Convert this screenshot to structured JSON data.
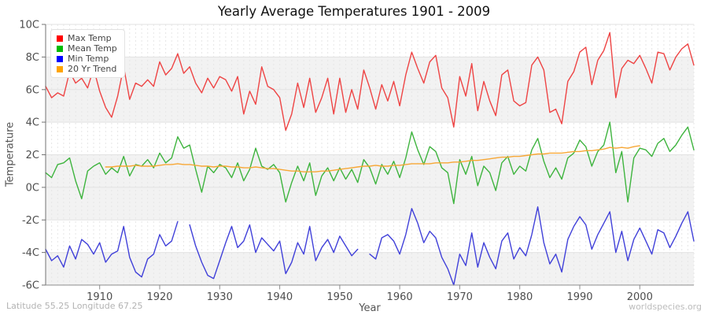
{
  "footer": {
    "left": "Latitude 55.25 Longitude 67.25",
    "right": "worldspecies.org"
  },
  "chart_data": {
    "type": "line",
    "title": "Yearly Average Temperatures 1901 - 2009",
    "xlabel": "Year",
    "ylabel": "Temperature",
    "x_start": 1901,
    "x_end": 2009,
    "ylim": [
      -6,
      10
    ],
    "legend_position": "top-left",
    "y_ticks": [
      {
        "value": 10,
        "label": "10C"
      },
      {
        "value": 8,
        "label": "8C"
      },
      {
        "value": 6,
        "label": "6C"
      },
      {
        "value": 4,
        "label": "4C"
      },
      {
        "value": 2,
        "label": "2C"
      },
      {
        "value": 0,
        "label": "0C"
      },
      {
        "value": -2,
        "label": "-2C"
      },
      {
        "value": -4,
        "label": "-4C"
      },
      {
        "value": -6,
        "label": "-6C"
      }
    ],
    "x_ticks": [
      {
        "value": 1910,
        "label": "1910"
      },
      {
        "value": 1920,
        "label": "1920"
      },
      {
        "value": 1930,
        "label": "1930"
      },
      {
        "value": 1940,
        "label": "1940"
      },
      {
        "value": 1950,
        "label": "1950"
      },
      {
        "value": 1960,
        "label": "1960"
      },
      {
        "value": 1970,
        "label": "1970"
      },
      {
        "value": 1980,
        "label": "1980"
      },
      {
        "value": 1990,
        "label": "1990"
      },
      {
        "value": 2000,
        "label": "2000"
      }
    ],
    "plot": {
      "band_color": "#f2f2f2",
      "gray_bands": [
        [
          8,
          4
        ],
        [
          2,
          -2
        ],
        [
          -4,
          -6
        ]
      ],
      "vgrid": "dashed, one per year",
      "vgrid_color": "#e6e6e6",
      "hgrid": "solid, every 2C",
      "hgrid_color": "#e2e2e2",
      "spine_color": "#808080"
    },
    "series": [
      {
        "name": "Max Temp",
        "color": "#ee4444",
        "swatch": "#ff0000",
        "values": [
          6.2,
          5.5,
          5.8,
          5.6,
          7.1,
          6.4,
          6.7,
          6.1,
          7.3,
          5.9,
          4.9,
          4.3,
          5.6,
          7.4,
          5.4,
          6.4,
          6.2,
          6.6,
          6.2,
          7.7,
          6.9,
          7.3,
          8.2,
          7.0,
          7.4,
          6.4,
          5.8,
          6.7,
          6.1,
          6.8,
          6.6,
          5.9,
          6.8,
          4.5,
          5.9,
          5.1,
          7.4,
          6.2,
          6.0,
          5.5,
          3.5,
          4.5,
          6.4,
          4.9,
          6.7,
          4.6,
          5.5,
          6.7,
          4.5,
          6.7,
          4.6,
          6.0,
          4.8,
          7.2,
          6.1,
          4.8,
          6.3,
          5.3,
          6.5,
          5.0,
          6.9,
          8.3,
          7.3,
          6.4,
          7.7,
          8.1,
          6.1,
          5.5,
          3.7,
          6.8,
          5.6,
          7.6,
          4.7,
          6.5,
          5.3,
          4.4,
          6.9,
          7.2,
          5.3,
          5.0,
          5.2,
          7.5,
          8.0,
          7.2,
          4.6,
          4.8,
          3.9,
          6.5,
          7.1,
          8.3,
          8.6,
          6.3,
          7.8,
          8.4,
          9.5,
          5.5,
          7.3,
          7.8,
          7.6,
          8.1,
          7.3,
          6.4,
          8.3,
          8.2,
          7.2,
          8.0,
          8.5,
          8.8,
          7.5
        ]
      },
      {
        "name": "Mean Temp",
        "color": "#3eb43e",
        "swatch": "#00bb00",
        "values": [
          0.9,
          0.6,
          1.4,
          1.5,
          1.8,
          0.4,
          -0.7,
          1.0,
          1.3,
          1.5,
          0.8,
          1.2,
          0.9,
          1.9,
          0.7,
          1.4,
          1.3,
          1.7,
          1.2,
          2.1,
          1.5,
          1.8,
          3.1,
          2.4,
          2.6,
          1.1,
          -0.3,
          1.3,
          0.9,
          1.4,
          1.2,
          0.6,
          1.5,
          0.4,
          1.1,
          2.4,
          1.3,
          1.1,
          1.4,
          0.9,
          -0.9,
          0.3,
          1.3,
          0.4,
          1.5,
          -0.5,
          0.7,
          1.2,
          0.4,
          1.2,
          0.5,
          1.1,
          0.3,
          1.7,
          1.2,
          0.2,
          1.4,
          0.8,
          1.6,
          0.6,
          1.8,
          3.4,
          2.3,
          1.4,
          2.5,
          2.2,
          1.2,
          0.9,
          -1.0,
          1.7,
          0.8,
          1.9,
          0.1,
          1.3,
          0.9,
          -0.2,
          1.5,
          1.9,
          0.8,
          1.3,
          1.0,
          2.3,
          3.0,
          1.6,
          0.6,
          1.2,
          0.5,
          1.8,
          2.1,
          2.9,
          2.5,
          1.3,
          2.2,
          2.6,
          4.0,
          0.9,
          2.2,
          -0.9,
          1.8,
          2.4,
          2.3,
          1.9,
          2.7,
          3.0,
          2.2,
          2.6,
          3.2,
          3.7,
          2.3
        ]
      },
      {
        "name": "Min Temp",
        "color": "#4040d9",
        "swatch": "#0000ff",
        "values": [
          -3.8,
          -4.5,
          -4.2,
          -4.9,
          -3.6,
          -4.4,
          -3.2,
          -3.5,
          -4.1,
          -3.4,
          -4.6,
          -4.1,
          -3.9,
          -2.4,
          -4.3,
          -5.2,
          -5.5,
          -4.4,
          -4.1,
          -2.9,
          -3.6,
          -3.3,
          -2.1,
          null,
          -2.3,
          -3.6,
          -4.6,
          -5.4,
          -5.6,
          -4.5,
          -3.4,
          -2.4,
          -3.7,
          -3.3,
          -2.3,
          -4.0,
          -3.1,
          -3.5,
          -3.9,
          -3.3,
          -5.3,
          -4.6,
          -3.4,
          -4.1,
          -2.4,
          -4.5,
          -3.7,
          -3.2,
          -4.0,
          -3.0,
          -3.6,
          -4.2,
          -3.8,
          null,
          -4.1,
          -4.4,
          -3.1,
          -2.9,
          -3.3,
          -4.1,
          -2.9,
          -1.3,
          -2.2,
          -3.4,
          -2.7,
          -3.1,
          -4.3,
          -5.0,
          -6.0,
          -4.1,
          -4.8,
          -2.8,
          -4.9,
          -3.4,
          -4.3,
          -5.0,
          -3.3,
          -2.8,
          -4.4,
          -3.7,
          -4.2,
          -2.9,
          -1.2,
          -3.4,
          -4.7,
          -4.1,
          -5.2,
          -3.2,
          -2.4,
          -1.8,
          -2.3,
          -3.8,
          -2.9,
          -2.2,
          -1.5,
          -4.0,
          -2.7,
          -4.5,
          -3.2,
          -2.5,
          -3.3,
          -4.1,
          -2.6,
          -2.8,
          -3.7,
          -3.0,
          -2.2,
          -1.5,
          -3.3
        ]
      },
      {
        "name": "20 Yr Trend",
        "color": "#f7a735",
        "swatch": "#ffa500",
        "values": [
          null,
          null,
          null,
          null,
          null,
          null,
          null,
          null,
          null,
          null,
          1.25,
          1.25,
          1.3,
          1.3,
          1.3,
          1.35,
          1.3,
          1.3,
          1.3,
          1.35,
          1.4,
          1.4,
          1.45,
          1.4,
          1.4,
          1.35,
          1.3,
          1.3,
          1.25,
          1.3,
          1.3,
          1.25,
          1.25,
          1.2,
          1.2,
          1.25,
          1.2,
          1.15,
          1.15,
          1.1,
          1.05,
          1.0,
          1.0,
          0.95,
          0.95,
          0.95,
          1.0,
          1.0,
          1.05,
          1.1,
          1.15,
          1.2,
          1.25,
          1.3,
          1.3,
          1.35,
          1.3,
          1.3,
          1.35,
          1.35,
          1.4,
          1.45,
          1.45,
          1.45,
          1.45,
          1.5,
          1.5,
          1.5,
          1.55,
          1.55,
          1.6,
          1.65,
          1.65,
          1.7,
          1.75,
          1.8,
          1.85,
          1.85,
          1.9,
          1.9,
          1.95,
          2.0,
          2.05,
          2.05,
          2.1,
          2.1,
          2.1,
          2.15,
          2.2,
          2.2,
          2.25,
          2.25,
          2.3,
          2.35,
          2.45,
          2.4,
          2.45,
          2.4,
          2.5,
          2.55,
          null,
          null,
          null,
          null,
          null,
          null,
          null,
          null,
          null
        ]
      }
    ]
  }
}
